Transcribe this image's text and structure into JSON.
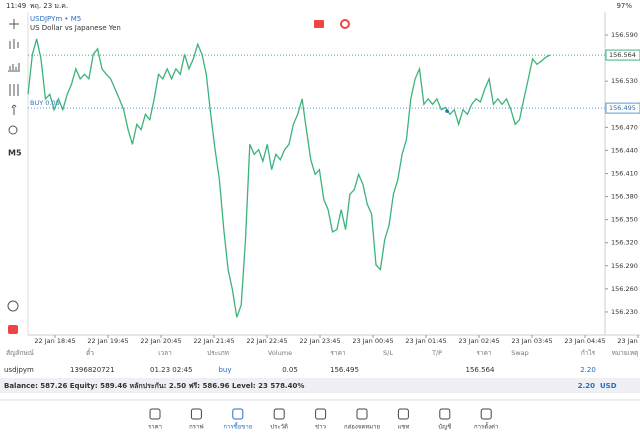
{
  "status_bar": {
    "time": "11:49",
    "date": "พฤ. 23 ม.ค.",
    "battery": "97%"
  },
  "chart": {
    "type": "line",
    "symbol": "USDJPYm • M5",
    "description": "US Dollar vs Japanese Yen",
    "timeframe": "M5",
    "color": "#3cb37a",
    "values": [
      156.513,
      156.565,
      156.585,
      156.559,
      156.507,
      156.513,
      156.493,
      156.507,
      156.493,
      156.513,
      156.526,
      156.546,
      156.533,
      156.539,
      156.533,
      156.565,
      156.572,
      156.546,
      156.539,
      156.533,
      156.52,
      156.507,
      156.493,
      156.467,
      156.448,
      156.474,
      156.467,
      156.487,
      156.48,
      156.507,
      156.539,
      156.533,
      156.546,
      156.533,
      156.546,
      156.539,
      156.565,
      156.546,
      156.559,
      156.578,
      156.565,
      156.539,
      156.487,
      156.441,
      156.402,
      156.337,
      156.285,
      156.259,
      156.223,
      156.239,
      156.324,
      156.448,
      156.435,
      156.441,
      156.426,
      156.448,
      156.415,
      156.435,
      156.428,
      156.441,
      156.448,
      156.474,
      156.487,
      156.507,
      156.467,
      156.428,
      156.409,
      156.415,
      156.376,
      156.363,
      156.334,
      156.337,
      156.363,
      156.337,
      156.383,
      156.389,
      156.409,
      156.396,
      156.37,
      156.357,
      156.291,
      156.285,
      156.324,
      156.343,
      156.383,
      156.402,
      156.435,
      156.454,
      156.507,
      156.533,
      156.546,
      156.5,
      156.507,
      156.5,
      156.507,
      156.493,
      156.496,
      156.487,
      156.493,
      156.474,
      156.493,
      156.487,
      156.5,
      156.507,
      156.503,
      156.52,
      156.533,
      156.5,
      156.507,
      156.5,
      156.507,
      156.493,
      156.474,
      156.48,
      156.507,
      156.533,
      156.559,
      156.552,
      156.556,
      156.561,
      156.564
    ],
    "ylim": [
      156.2,
      156.62
    ],
    "yticks": [
      {
        "value": 156.59,
        "label": "156.590"
      },
      {
        "value": 156.53,
        "label": "156.530"
      },
      {
        "value": 156.47,
        "label": "156.470"
      },
      {
        "value": 156.44,
        "label": "156.440"
      },
      {
        "value": 156.41,
        "label": "156.410"
      },
      {
        "value": 156.38,
        "label": "156.380"
      },
      {
        "value": 156.35,
        "label": "156.350"
      },
      {
        "value": 156.32,
        "label": "156.320"
      },
      {
        "value": 156.29,
        "label": "156.290"
      },
      {
        "value": 156.26,
        "label": "156.260"
      },
      {
        "value": 156.23,
        "label": "156.230"
      }
    ],
    "xlabels": [
      "22 Jan 18:45",
      "22 Jan 19:45",
      "22 Jan 20:45",
      "22 Jan 21:45",
      "22 Jan 22:45",
      "22 Jan 23:45",
      "23 Jan 00:45",
      "23 Jan 01:45",
      "23 Jan 02:45",
      "23 Jan 03:45",
      "23 Jan 04:45",
      "23 Jan 05:45"
    ],
    "current_price": 156.564,
    "position": {
      "label": "BUY 0.05",
      "price": 156.495
    }
  },
  "table": {
    "headers": [
      "สัญลักษณ์",
      "ตั๋ว",
      "เวลา",
      "ประเภท",
      "Volume",
      "ราคา",
      "S/L",
      "T/P",
      "ราคา",
      "Swap",
      "กำไร",
      "หมายเหตุ"
    ],
    "row": {
      "symbol": "usdjpym",
      "ticket": "1396820721",
      "time": "01.23 02:45",
      "type": "buy",
      "volume": "0.05",
      "open_price": "156.495",
      "current_price": "156.564",
      "profit": "2.20"
    }
  },
  "balance": {
    "text": "Balance: 587.26 Equity: 589.46 หลักประกัน: 2.50 ฟรี: 586.96 Level: 23 578.40%",
    "profit": "2.20",
    "currency": "USD"
  },
  "nav": [
    "ราคา",
    "กราฟ",
    "การซื้อขาย",
    "ประวัติ",
    "ข่าว",
    "กล่องจดหมาย",
    "แชท",
    "บัญชี",
    "การตั้งค่า"
  ]
}
